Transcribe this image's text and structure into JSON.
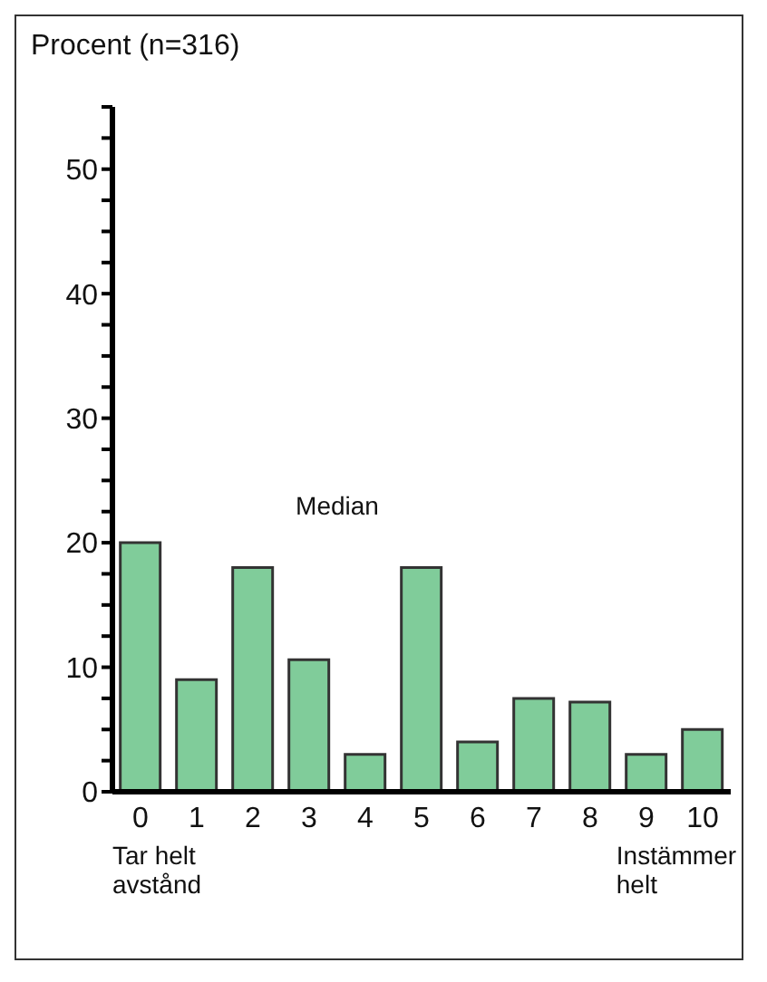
{
  "chart_data": {
    "type": "bar",
    "title": "Procent (n=316)",
    "categories": [
      "0",
      "1",
      "2",
      "3",
      "4",
      "5",
      "6",
      "7",
      "8",
      "9",
      "10"
    ],
    "values": [
      20,
      9,
      18,
      10.6,
      3,
      18,
      4,
      7.5,
      7.2,
      3,
      5
    ],
    "color": "#80cc9a",
    "ylim": [
      0,
      55
    ],
    "yticks": [
      0,
      {
        "value": 2.5,
        "label": null
      },
      {
        "value": 5,
        "label": null
      },
      {
        "value": 7.5,
        "label": null
      },
      10,
      {
        "value": 12.5,
        "label": null
      },
      {
        "value": 15,
        "label": null
      },
      {
        "value": 17.5,
        "label": null
      },
      20,
      {
        "value": 22.5,
        "label": null
      },
      {
        "value": 25,
        "label": null
      },
      {
        "value": 27.5,
        "label": null
      },
      30,
      {
        "value": 32.5,
        "label": null
      },
      {
        "value": 35,
        "label": null
      },
      {
        "value": 37.5,
        "label": null
      },
      40,
      {
        "value": 42.5,
        "label": null
      },
      {
        "value": 45,
        "label": null
      },
      {
        "value": 47.5,
        "label": null
      },
      50,
      {
        "value": 52.5,
        "label": null
      },
      {
        "value": 55,
        "label": null
      }
    ],
    "annotations": [
      "Median",
      "Tar helt\navstånd",
      "Instämmer\nhelt"
    ]
  }
}
